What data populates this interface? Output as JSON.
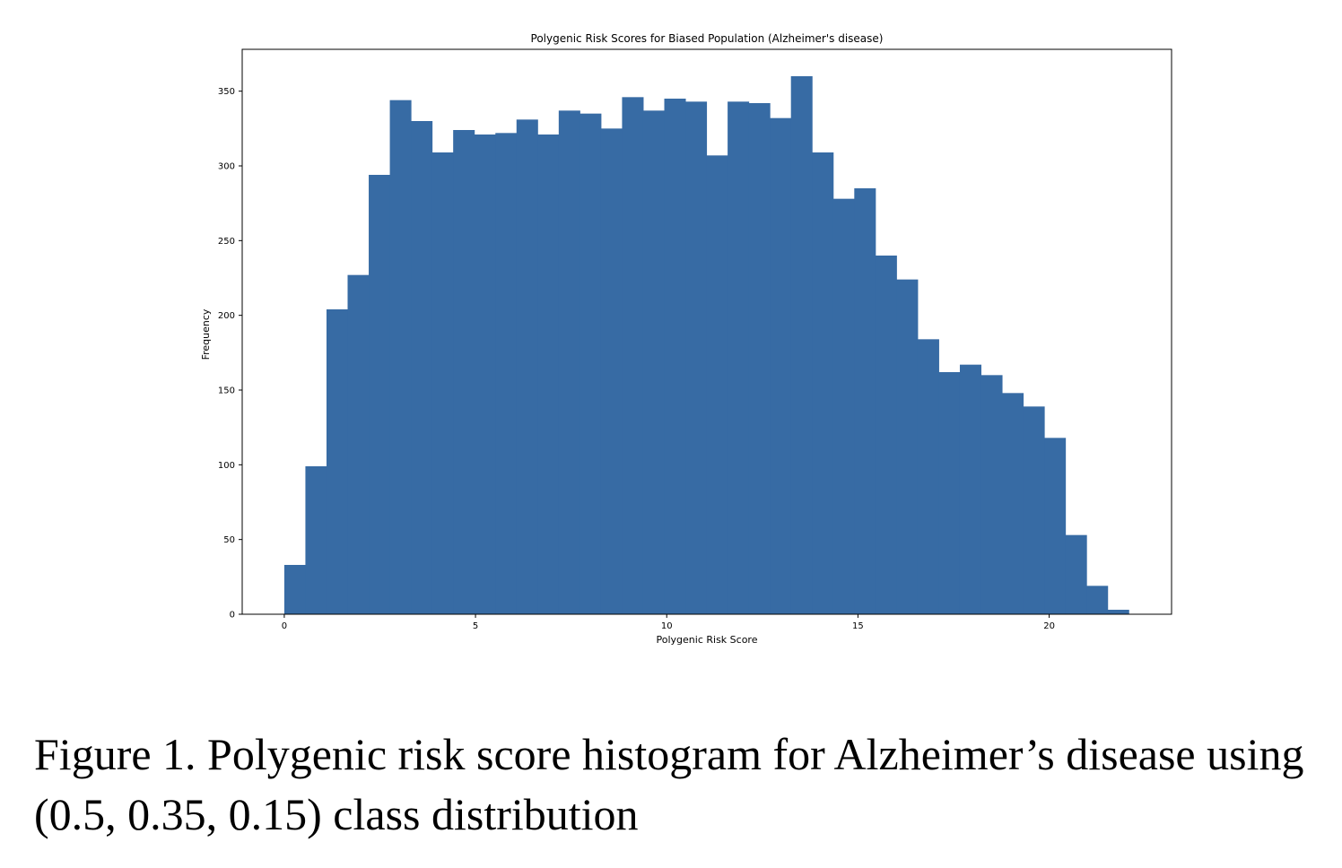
{
  "chart_data": {
    "type": "bar",
    "title": "Polygenic Risk Scores for Biased Population (Alzheimer's disease)",
    "xlabel": "Polygenic Risk Score",
    "ylabel": "Frequency",
    "xlim": [
      -1.1,
      23.2
    ],
    "ylim": [
      0,
      378
    ],
    "xticks": [
      0,
      5,
      10,
      15,
      20
    ],
    "yticks": [
      0,
      50,
      100,
      150,
      200,
      250,
      300,
      350
    ],
    "grid": false,
    "bar_color": "#376ba4",
    "bin_start": 0.0,
    "bin_width": 0.552,
    "values": [
      33,
      99,
      204,
      227,
      294,
      344,
      330,
      309,
      324,
      321,
      322,
      331,
      321,
      337,
      335,
      325,
      346,
      337,
      345,
      343,
      307,
      343,
      342,
      332,
      360,
      309,
      278,
      285,
      240,
      224,
      184,
      162,
      167,
      160,
      148,
      139,
      118,
      53,
      19,
      3
    ]
  },
  "caption": {
    "text": "Figure 1. Polygenic risk score histogram for Alzheimer’s disease using (0.5, 0.35, 0.15) class distribution"
  }
}
